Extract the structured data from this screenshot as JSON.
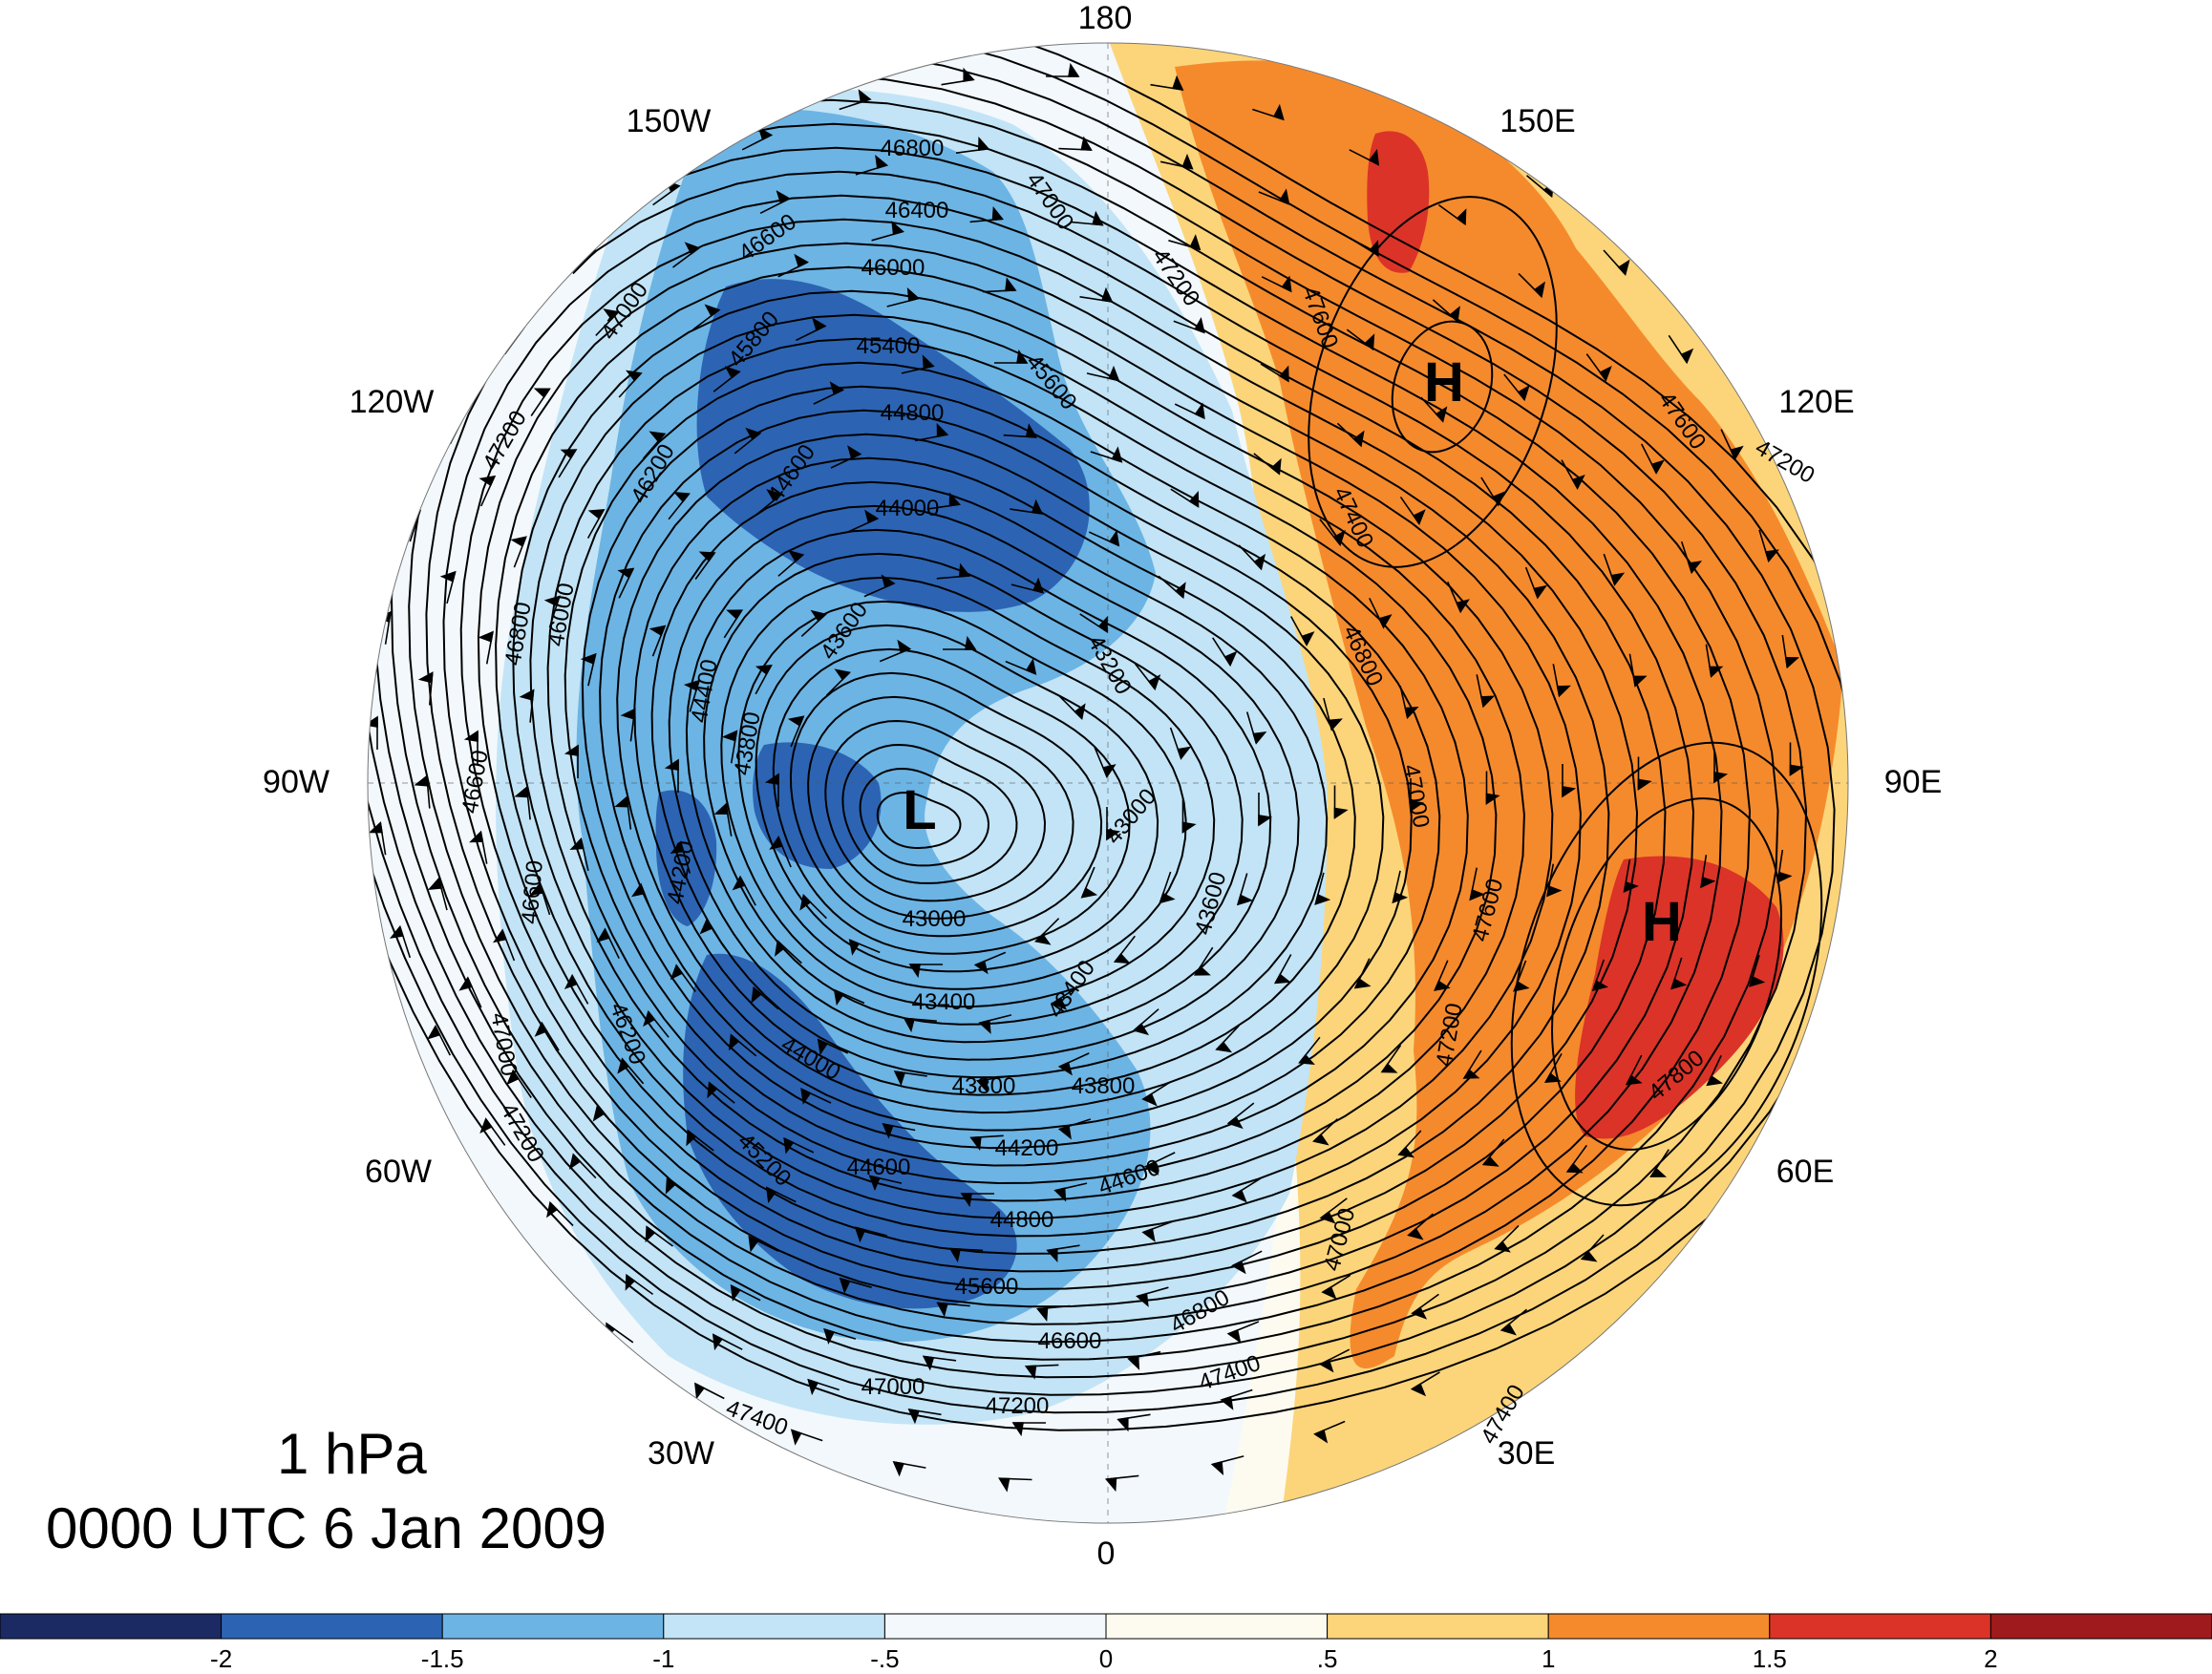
{
  "title": {
    "level": "1 hPa",
    "time": "0000 UTC 6 Jan 2009"
  },
  "longitude_labels": [
    {
      "text": "180"
    },
    {
      "text": "150E"
    },
    {
      "text": "120E"
    },
    {
      "text": "90E"
    },
    {
      "text": "60E"
    },
    {
      "text": "30E"
    },
    {
      "text": "0"
    },
    {
      "text": "30W"
    },
    {
      "text": "60W"
    },
    {
      "text": "90W"
    },
    {
      "text": "120W"
    },
    {
      "text": "150W"
    }
  ],
  "pressure_centers": [
    {
      "symbol": "L"
    },
    {
      "symbol": "H"
    },
    {
      "symbol": "H"
    }
  ],
  "contour_labels": [
    {
      "text": "46800"
    },
    {
      "text": "46400"
    },
    {
      "text": "46600"
    },
    {
      "text": "46000"
    },
    {
      "text": "45800"
    },
    {
      "text": "45400"
    },
    {
      "text": "45600"
    },
    {
      "text": "44800"
    },
    {
      "text": "44600"
    },
    {
      "text": "44000"
    },
    {
      "text": "43600"
    },
    {
      "text": "43200"
    },
    {
      "text": "43800"
    },
    {
      "text": "43000"
    },
    {
      "text": "43000"
    },
    {
      "text": "43400"
    },
    {
      "text": "43400"
    },
    {
      "text": "43600"
    },
    {
      "text": "43800"
    },
    {
      "text": "43800"
    },
    {
      "text": "44200"
    },
    {
      "text": "44600"
    },
    {
      "text": "44600"
    },
    {
      "text": "44800"
    },
    {
      "text": "45600"
    },
    {
      "text": "46600"
    },
    {
      "text": "46800"
    },
    {
      "text": "45200"
    },
    {
      "text": "47000"
    },
    {
      "text": "47200"
    },
    {
      "text": "47400"
    },
    {
      "text": "47000"
    },
    {
      "text": "47200"
    },
    {
      "text": "47000"
    },
    {
      "text": "47200"
    },
    {
      "text": "46200"
    },
    {
      "text": "46000"
    },
    {
      "text": "46800"
    },
    {
      "text": "46600"
    },
    {
      "text": "44200"
    },
    {
      "text": "44400"
    },
    {
      "text": "46600"
    },
    {
      "text": "47000"
    },
    {
      "text": "47200"
    },
    {
      "text": "47600"
    },
    {
      "text": "47400"
    },
    {
      "text": "46800"
    },
    {
      "text": "47000"
    },
    {
      "text": "47200"
    },
    {
      "text": "47600"
    },
    {
      "text": "47400"
    },
    {
      "text": "47800"
    },
    {
      "text": "47000"
    },
    {
      "text": "47600"
    },
    {
      "text": "47200"
    },
    {
      "text": "47400"
    },
    {
      "text": "44000"
    },
    {
      "text": "46200"
    }
  ],
  "colorbar": {
    "colors": [
      "#1b2a63",
      "#2c64b3",
      "#6cb4e4",
      "#c2e4f6",
      "#f2f8fc",
      "#fdfbf0",
      "#fcd57a",
      "#f58a2c",
      "#db3328",
      "#9e1a1c"
    ],
    "tick_labels": [
      "-2",
      "-1.5",
      "-1",
      "-.5",
      "0",
      ".5",
      "1",
      "1.5",
      "2"
    ]
  }
}
